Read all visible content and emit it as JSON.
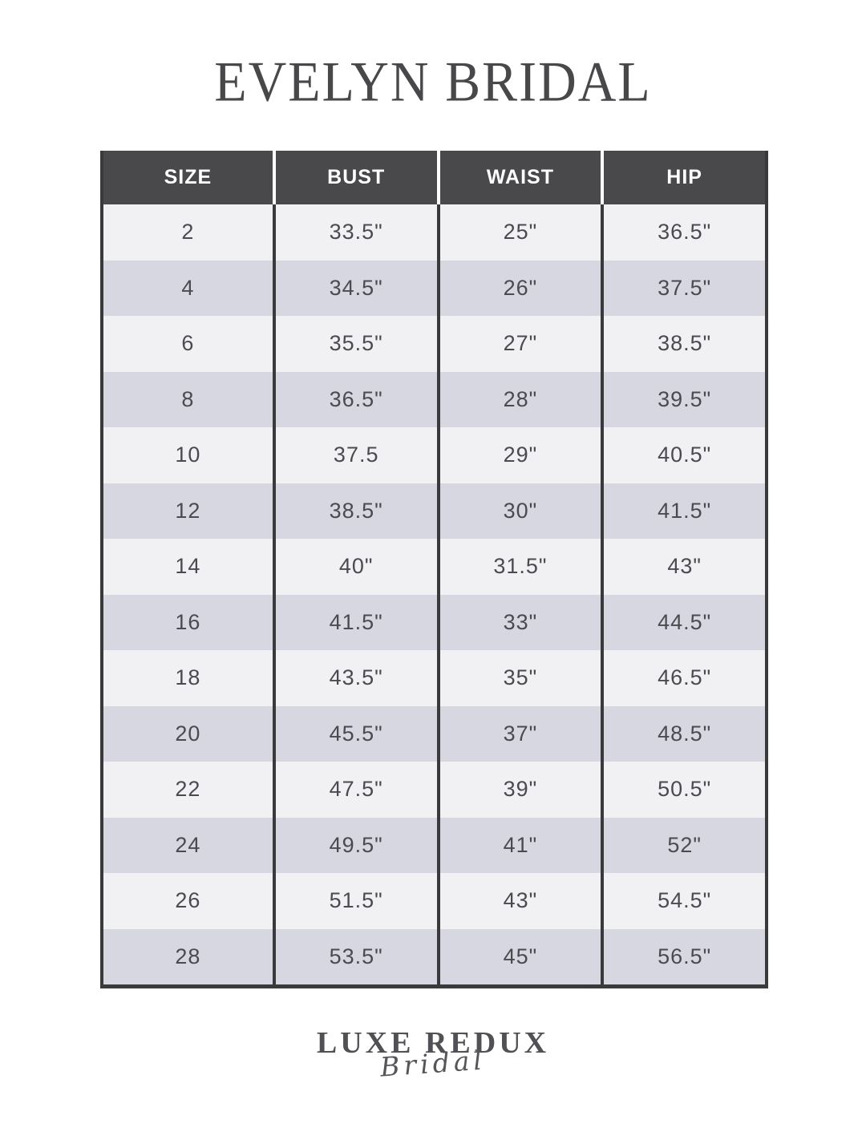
{
  "title": "EVELYN BRIDAL",
  "table": {
    "headers": [
      "SIZE",
      "BUST",
      "WAIST",
      "HIP"
    ],
    "rows": [
      {
        "size": "2",
        "bust": "33.5\"",
        "waist": "25\"",
        "hip": "36.5\""
      },
      {
        "size": "4",
        "bust": "34.5\"",
        "waist": "26\"",
        "hip": "37.5\""
      },
      {
        "size": "6",
        "bust": "35.5\"",
        "waist": "27\"",
        "hip": "38.5\""
      },
      {
        "size": "8",
        "bust": "36.5\"",
        "waist": "28\"",
        "hip": "39.5\""
      },
      {
        "size": "10",
        "bust": "37.5",
        "waist": "29\"",
        "hip": "40.5\""
      },
      {
        "size": "12",
        "bust": "38.5\"",
        "waist": "30\"",
        "hip": "41.5\""
      },
      {
        "size": "14",
        "bust": "40\"",
        "waist": "31.5\"",
        "hip": "43\""
      },
      {
        "size": "16",
        "bust": "41.5\"",
        "waist": "33\"",
        "hip": "44.5\""
      },
      {
        "size": "18",
        "bust": "43.5\"",
        "waist": "35\"",
        "hip": "46.5\""
      },
      {
        "size": "20",
        "bust": "45.5\"",
        "waist": "37\"",
        "hip": "48.5\""
      },
      {
        "size": "22",
        "bust": "47.5\"",
        "waist": "39\"",
        "hip": "50.5\""
      },
      {
        "size": "24",
        "bust": "49.5\"",
        "waist": "41\"",
        "hip": "52\""
      },
      {
        "size": "26",
        "bust": "51.5\"",
        "waist": "43\"",
        "hip": "54.5\""
      },
      {
        "size": "28",
        "bust": "53.5\"",
        "waist": "45\"",
        "hip": "56.5\""
      }
    ]
  },
  "footer": {
    "brand": "LUXE REDUX",
    "brand_sub": "Bridal"
  },
  "colors": {
    "header_bg": "#49494b",
    "row_light": "#f1f1f4",
    "row_shaded": "#d7d7e1",
    "border": "#3a3a3c",
    "text": "#4a4a50",
    "title_text": "#48484b"
  }
}
